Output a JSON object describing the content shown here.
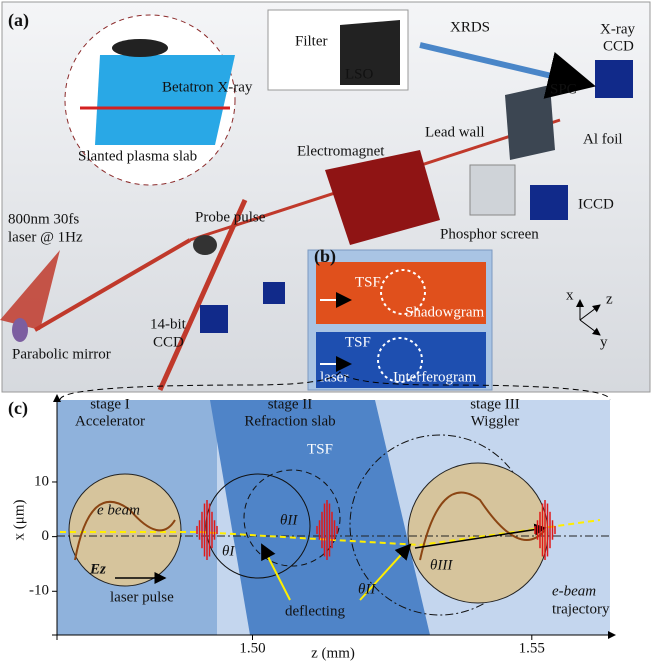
{
  "panel_a": {
    "label": "(a)",
    "filter": "Filter",
    "lso": "LSO",
    "xrds": "XRDS",
    "xray_ccd": [
      "X-ray",
      "CCD"
    ],
    "spc": "SPC",
    "lead_wall": "Lead wall",
    "al_foil": "Al foil",
    "electromagnet": "Electromagnet",
    "betatron": "Betatron X-ray",
    "slanted_slab": "Slanted plasma slab",
    "laser": [
      "800nm 30fs",
      "laser @ 1Hz"
    ],
    "probe": "Probe pulse",
    "iccd": "ICCD",
    "phosphor": "Phosphor screen",
    "mirror": "Parabolic mirror",
    "ccd14": [
      "14-bit",
      "CCD"
    ],
    "axes": [
      "x",
      "z",
      "y"
    ]
  },
  "panel_b": {
    "label": "(b)",
    "shadow_tsf": "TSF",
    "shadowgram": "Shadowgram",
    "inter_tsf": "TSF",
    "laser": "laser",
    "interferogram": "Interferogram"
  },
  "panel_c": {
    "label": "(c)",
    "stages": [
      {
        "name": "stage I",
        "role": "Accelerator"
      },
      {
        "name": "stage II",
        "role": "Refraction slab"
      },
      {
        "name": "stage III",
        "role": "Wiggler"
      }
    ],
    "tsf": "TSF",
    "ylabel": "x (μm)",
    "xlabel": "z (mm)",
    "yticks": [
      10,
      0,
      -10
    ],
    "ylim": [
      -18,
      25
    ],
    "xticks": [
      {
        "value": 1.5,
        "label": "1.50"
      },
      {
        "value": 1.55,
        "label": "1.55"
      }
    ],
    "xlim": [
      1.465,
      1.564
    ],
    "e_beam": "e beam",
    "ez": "Ez",
    "laser_pulse": "laser pulse",
    "deflecting": "deflecting",
    "trajectory": [
      "e-beam",
      "trajectory"
    ],
    "thetas": [
      "θI",
      "θII",
      "θII",
      "θIII"
    ]
  }
}
